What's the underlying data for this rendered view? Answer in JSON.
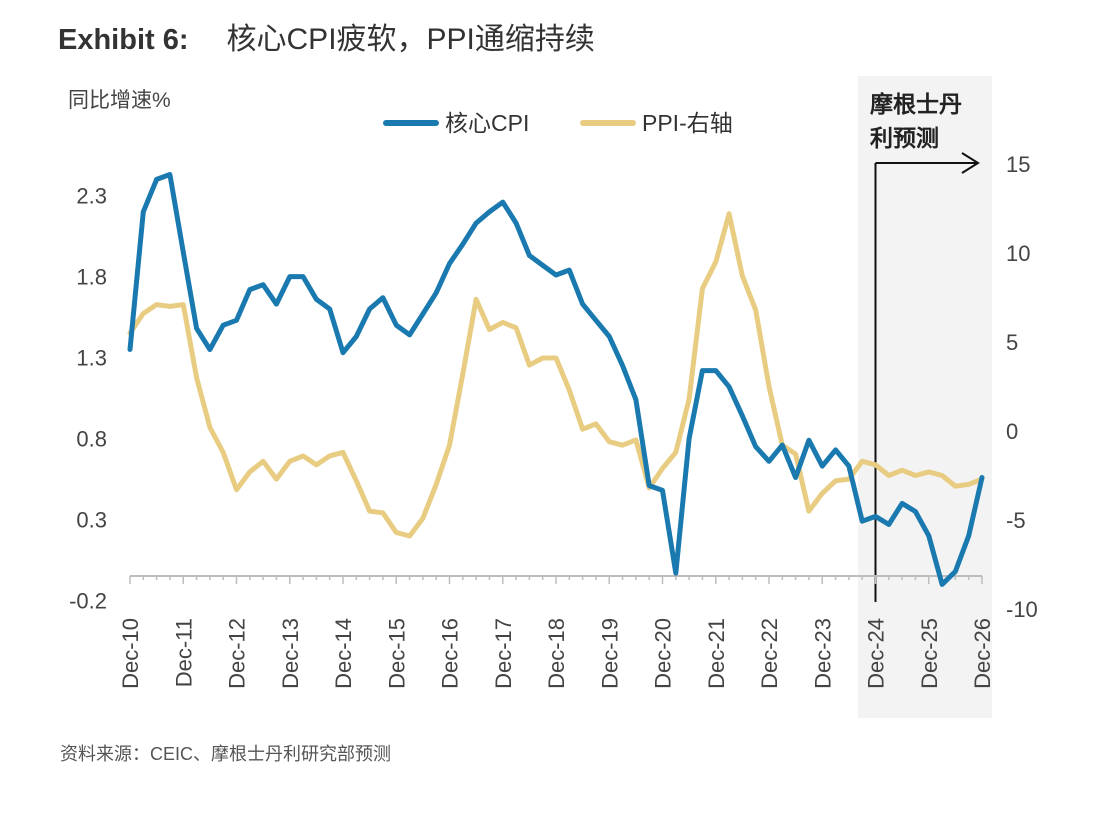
{
  "header": {
    "exhibit_label": "Exhibit 6:",
    "title": "核心CPI疲软，PPI通缩持续"
  },
  "footer": {
    "source": "资料来源：CEIC、摩根士丹利研究部预测"
  },
  "chart_data": {
    "type": "line",
    "title": "核心CPI疲软，PPI通缩持续",
    "ylabel_left": "同比增速%",
    "forecast_label_line1": "摩根士丹",
    "forecast_label_line2": "利预测",
    "x_ticks": [
      "Dec-10",
      "Dec-11",
      "Dec-12",
      "Dec-13",
      "Dec-14",
      "Dec-15",
      "Dec-16",
      "Dec-17",
      "Dec-18",
      "Dec-19",
      "Dec-20",
      "Dec-21",
      "Dec-22",
      "Dec-23",
      "Dec-24",
      "Dec-25",
      "Dec-26"
    ],
    "xlim": [
      0,
      64
    ],
    "forecast_start_quarter": 56,
    "y_left": {
      "ticks": [
        "2.3",
        "1.8",
        "1.3",
        "0.8",
        "0.3",
        "-0.2"
      ],
      "tick_values": [
        2.3,
        1.8,
        1.3,
        0.8,
        0.3,
        -0.2
      ],
      "range": [
        -0.2,
        2.6
      ]
    },
    "y_right": {
      "ticks": [
        "15",
        "10",
        "5",
        "0",
        "-5",
        "-10"
      ],
      "tick_values": [
        15,
        10,
        5,
        0,
        -5,
        -10
      ],
      "range": [
        -10,
        17
      ]
    },
    "legend_position": "top-center",
    "series": [
      {
        "name": "核心CPI",
        "axis": "left",
        "color": "#1a7ab0",
        "points": [
          [
            0,
            1.35
          ],
          [
            1,
            2.2
          ],
          [
            2,
            2.4
          ],
          [
            3,
            2.43
          ],
          [
            4,
            1.95
          ],
          [
            5,
            1.48
          ],
          [
            6,
            1.35
          ],
          [
            7,
            1.5
          ],
          [
            8,
            1.53
          ],
          [
            9,
            1.72
          ],
          [
            10,
            1.75
          ],
          [
            11,
            1.63
          ],
          [
            12,
            1.8
          ],
          [
            13,
            1.8
          ],
          [
            14,
            1.66
          ],
          [
            15,
            1.6
          ],
          [
            16,
            1.33
          ],
          [
            17,
            1.43
          ],
          [
            18,
            1.6
          ],
          [
            19,
            1.67
          ],
          [
            20,
            1.5
          ],
          [
            21,
            1.44
          ],
          [
            22,
            1.57
          ],
          [
            23,
            1.7
          ],
          [
            24,
            1.88
          ],
          [
            25,
            2.0
          ],
          [
            26,
            2.13
          ],
          [
            27,
            2.2
          ],
          [
            28,
            2.26
          ],
          [
            29,
            2.13
          ],
          [
            30,
            1.93
          ],
          [
            31,
            1.87
          ],
          [
            32,
            1.81
          ],
          [
            33,
            1.84
          ],
          [
            34,
            1.63
          ],
          [
            35,
            1.53
          ],
          [
            36,
            1.43
          ],
          [
            37,
            1.25
          ],
          [
            38,
            1.04
          ],
          [
            39,
            0.51
          ],
          [
            40,
            0.48
          ],
          [
            41,
            -0.03
          ],
          [
            42,
            0.8
          ],
          [
            43,
            1.22
          ],
          [
            44,
            1.22
          ],
          [
            45,
            1.12
          ],
          [
            46,
            0.94
          ],
          [
            47,
            0.75
          ],
          [
            48,
            0.66
          ],
          [
            49,
            0.76
          ],
          [
            50,
            0.56
          ],
          [
            51,
            0.79
          ],
          [
            52,
            0.63
          ],
          [
            53,
            0.73
          ],
          [
            54,
            0.63
          ],
          [
            55,
            0.29
          ],
          [
            56,
            0.32
          ],
          [
            57,
            0.27
          ],
          [
            58,
            0.4
          ],
          [
            59,
            0.35
          ],
          [
            60,
            0.2
          ],
          [
            61,
            -0.1
          ],
          [
            62,
            -0.02
          ],
          [
            63,
            0.2
          ],
          [
            64,
            0.56
          ]
        ]
      },
      {
        "name": "PPI-右轴",
        "axis": "right",
        "color": "#e8cc82",
        "points": [
          [
            0,
            5.5
          ],
          [
            1,
            6.6
          ],
          [
            2,
            7.1
          ],
          [
            3,
            7.0
          ],
          [
            4,
            7.1
          ],
          [
            5,
            3.0
          ],
          [
            6,
            0.2
          ],
          [
            7,
            -1.2
          ],
          [
            8,
            -3.3
          ],
          [
            9,
            -2.3
          ],
          [
            10,
            -1.7
          ],
          [
            11,
            -2.7
          ],
          [
            12,
            -1.7
          ],
          [
            13,
            -1.4
          ],
          [
            14,
            -1.9
          ],
          [
            15,
            -1.4
          ],
          [
            16,
            -1.2
          ],
          [
            17,
            -2.8
          ],
          [
            18,
            -4.5
          ],
          [
            19,
            -4.6
          ],
          [
            20,
            -5.7
          ],
          [
            21,
            -5.9
          ],
          [
            22,
            -4.9
          ],
          [
            23,
            -3.0
          ],
          [
            24,
            -0.8
          ],
          [
            25,
            3.2
          ],
          [
            26,
            7.4
          ],
          [
            27,
            5.7
          ],
          [
            28,
            6.1
          ],
          [
            29,
            5.8
          ],
          [
            30,
            3.7
          ],
          [
            31,
            4.1
          ],
          [
            32,
            4.1
          ],
          [
            33,
            2.3
          ],
          [
            34,
            0.1
          ],
          [
            35,
            0.4
          ],
          [
            36,
            -0.6
          ],
          [
            37,
            -0.8
          ],
          [
            38,
            -0.5
          ],
          [
            39,
            -3.2
          ],
          [
            40,
            -2.1
          ],
          [
            41,
            -1.2
          ],
          [
            42,
            1.8
          ],
          [
            43,
            8.0
          ],
          [
            44,
            9.5
          ],
          [
            45,
            12.2
          ],
          [
            46,
            8.7
          ],
          [
            47,
            6.8
          ],
          [
            48,
            2.5
          ],
          [
            49,
            -0.8
          ],
          [
            50,
            -1.3
          ],
          [
            51,
            -4.5
          ],
          [
            52,
            -3.5
          ],
          [
            53,
            -2.8
          ],
          [
            54,
            -2.7
          ],
          [
            55,
            -1.7
          ],
          [
            56,
            -1.9
          ],
          [
            57,
            -2.5
          ],
          [
            58,
            -2.2
          ],
          [
            59,
            -2.5
          ],
          [
            60,
            -2.3
          ],
          [
            61,
            -2.5
          ],
          [
            62,
            -3.1
          ],
          [
            63,
            -3.0
          ],
          [
            64,
            -2.7
          ]
        ]
      }
    ]
  }
}
